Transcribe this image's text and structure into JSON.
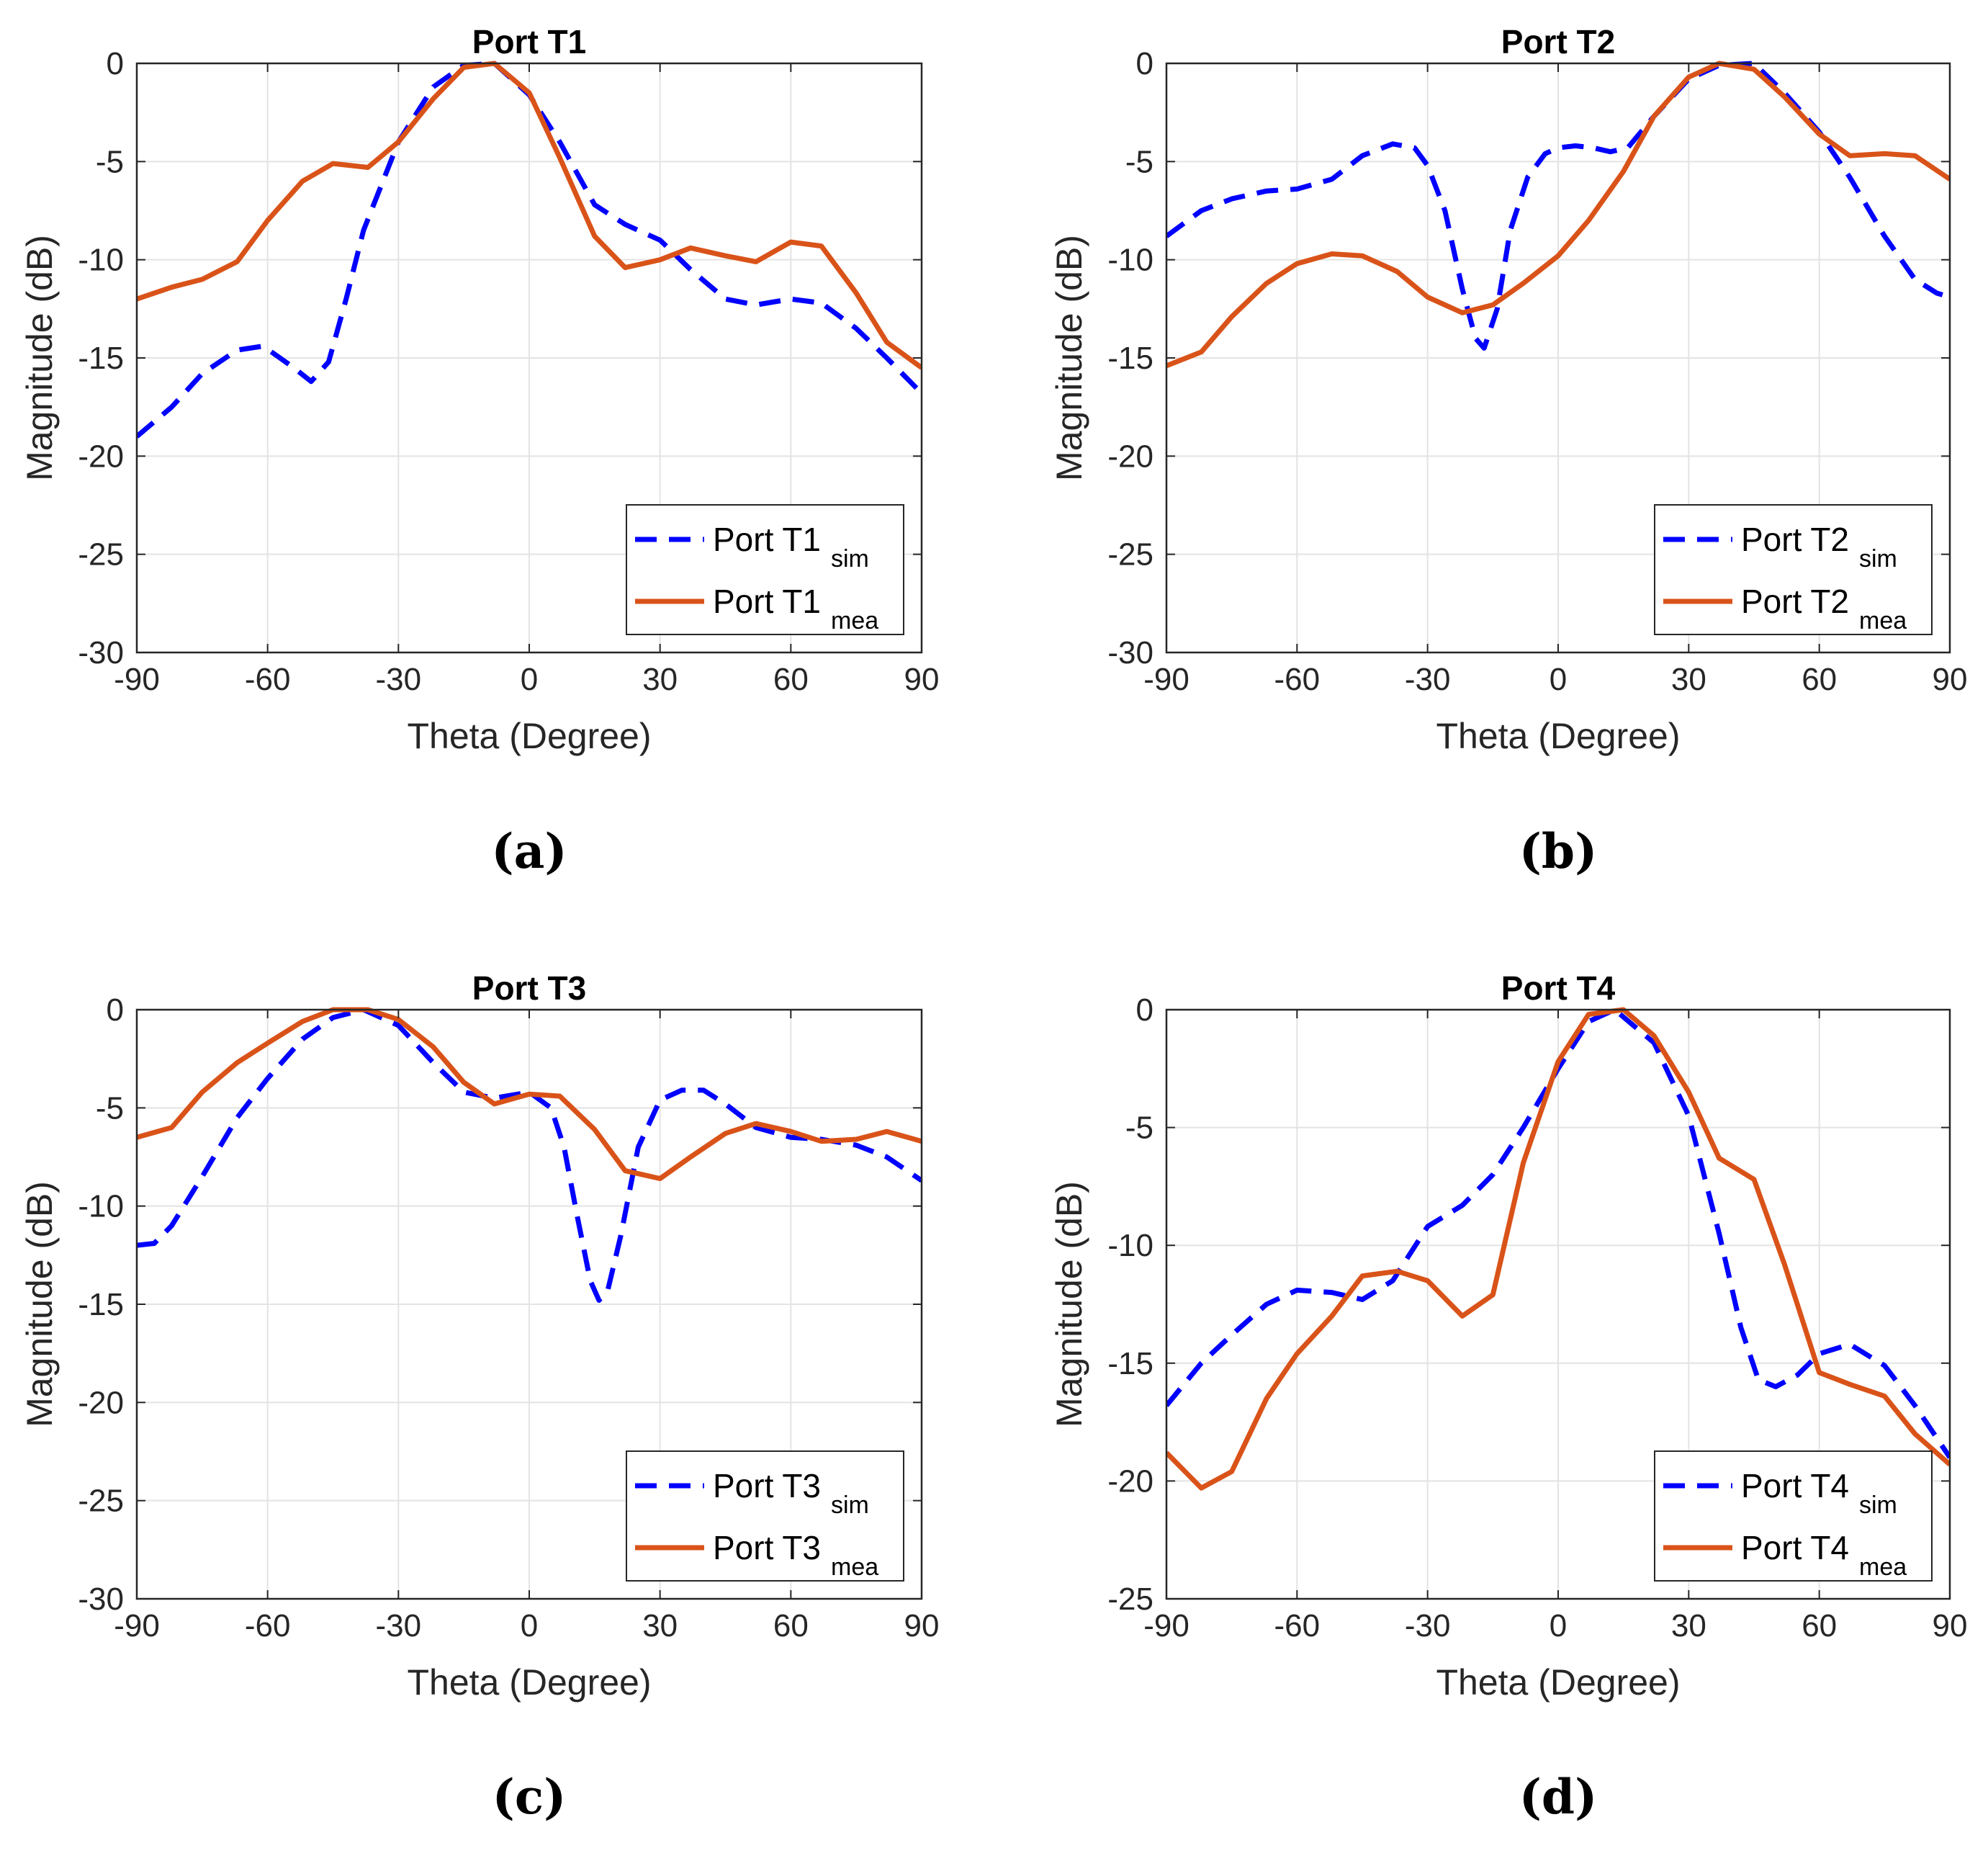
{
  "colors": {
    "sim": "#0000FF",
    "mea": "#D95319",
    "grid": "#E3E3E3",
    "axis": "#262626"
  },
  "chart_data": [
    {
      "type": "line",
      "caption": "(a)",
      "title": "Port T1",
      "xlabel": "Theta (Degree)",
      "ylabel": "Magnitude (dB)",
      "xlim": [
        -90,
        90
      ],
      "ylim": [
        -30,
        0
      ],
      "xticks": [
        -90,
        -60,
        -30,
        0,
        30,
        60,
        90
      ],
      "yticks": [
        0,
        -5,
        -10,
        -15,
        -20,
        -25,
        -30
      ],
      "grid": true,
      "legend_position": "bottom-right",
      "series": [
        {
          "name": "Port T1",
          "subscript": "sim",
          "style": "dashed",
          "x": [
            -90,
            -82,
            -75,
            -67,
            -61,
            -54,
            -50,
            -46,
            -42,
            -38,
            -30,
            -22,
            -15,
            -8,
            0,
            7,
            15,
            22,
            30,
            37,
            45,
            52,
            60,
            67,
            75,
            82,
            90
          ],
          "values": [
            -19,
            -17.5,
            -15.8,
            -14.6,
            -14.4,
            -15.5,
            -16.2,
            -15.2,
            -12,
            -8.5,
            -4,
            -1.2,
            -0.1,
            0,
            -1.6,
            -4,
            -7.2,
            -8.2,
            -9,
            -10.5,
            -12,
            -12.3,
            -12,
            -12.2,
            -13.5,
            -15,
            -16.8
          ]
        },
        {
          "name": "Port T1",
          "subscript": "mea",
          "style": "solid",
          "x": [
            -90,
            -82,
            -75,
            -67,
            -60,
            -52,
            -45,
            -37,
            -30,
            -22,
            -15,
            -8,
            0,
            7,
            15,
            22,
            30,
            37,
            45,
            52,
            60,
            67,
            75,
            82,
            90
          ],
          "values": [
            -12,
            -11.4,
            -11,
            -10.1,
            -8,
            -6,
            -5.1,
            -5.3,
            -4,
            -1.8,
            -0.2,
            0,
            -1.5,
            -4.8,
            -8.8,
            -10.4,
            -10,
            -9.4,
            -9.8,
            -10.1,
            -9.1,
            -9.3,
            -11.7,
            -14.2,
            -15.5
          ]
        }
      ]
    },
    {
      "type": "line",
      "caption": "(b)",
      "title": "Port T2",
      "xlabel": "Theta (Degree)",
      "ylabel": "Magnitude (dB)",
      "xlim": [
        -90,
        90
      ],
      "ylim": [
        -30,
        0
      ],
      "xticks": [
        -90,
        -60,
        -30,
        0,
        30,
        60,
        90
      ],
      "yticks": [
        0,
        -5,
        -10,
        -15,
        -20,
        -25,
        -30
      ],
      "grid": true,
      "legend_position": "bottom-right",
      "series": [
        {
          "name": "Port T2",
          "subscript": "sim",
          "style": "dashed",
          "x": [
            -90,
            -82,
            -75,
            -67,
            -60,
            -52,
            -45,
            -38,
            -33,
            -30,
            -26,
            -22,
            -19,
            -17,
            -14,
            -11,
            -7,
            -3,
            0,
            4,
            8,
            12,
            16,
            22,
            30,
            37,
            45,
            52,
            60,
            67,
            75,
            82,
            87,
            90
          ],
          "values": [
            -8.8,
            -7.5,
            -6.9,
            -6.5,
            -6.4,
            -5.9,
            -4.7,
            -4.1,
            -4.3,
            -5.2,
            -7.5,
            -11.5,
            -14,
            -14.5,
            -12.5,
            -8.5,
            -5.8,
            -4.6,
            -4.3,
            -4.2,
            -4.3,
            -4.5,
            -4.3,
            -2.7,
            -0.8,
            -0.1,
            0,
            -1.5,
            -3.5,
            -5.8,
            -8.8,
            -11,
            -11.7,
            -11.9
          ]
        },
        {
          "name": "Port T2",
          "subscript": "mea",
          "style": "solid",
          "x": [
            -90,
            -82,
            -75,
            -67,
            -60,
            -52,
            -45,
            -37,
            -30,
            -22,
            -15,
            -8,
            0,
            7,
            15,
            22,
            30,
            37,
            45,
            52,
            60,
            67,
            75,
            82,
            90
          ],
          "values": [
            -15.4,
            -14.7,
            -12.9,
            -11.2,
            -10.2,
            -9.7,
            -9.8,
            -10.6,
            -11.9,
            -12.7,
            -12.3,
            -11.2,
            -9.8,
            -8,
            -5.5,
            -2.7,
            -0.7,
            0,
            -0.3,
            -1.7,
            -3.6,
            -4.7,
            -4.6,
            -4.7,
            -5.9
          ]
        }
      ]
    },
    {
      "type": "line",
      "caption": "(c)",
      "title": "Port T3",
      "xlabel": "Theta (Degree)",
      "ylabel": "Magnitude (dB)",
      "xlim": [
        -90,
        90
      ],
      "ylim": [
        -30,
        0
      ],
      "xticks": [
        -90,
        -60,
        -30,
        0,
        30,
        60,
        90
      ],
      "yticks": [
        0,
        -5,
        -10,
        -15,
        -20,
        -25,
        -30
      ],
      "grid": true,
      "legend_position": "bottom-right",
      "series": [
        {
          "name": "Port T3",
          "subscript": "sim",
          "style": "dashed",
          "x": [
            -90,
            -86,
            -82,
            -75,
            -67,
            -60,
            -52,
            -45,
            -38,
            -30,
            -22,
            -15,
            -8,
            0,
            5,
            8,
            11,
            14,
            16,
            18,
            21,
            25,
            30,
            35,
            40,
            45,
            52,
            60,
            67,
            75,
            82,
            90
          ],
          "values": [
            -12,
            -11.9,
            -11,
            -8.5,
            -5.5,
            -3.5,
            -1.5,
            -0.4,
            0,
            -0.8,
            -2.7,
            -4.2,
            -4.5,
            -4.2,
            -5,
            -7,
            -10.5,
            -13.8,
            -14.8,
            -14.3,
            -11.5,
            -7,
            -4.6,
            -4.1,
            -4.1,
            -4.8,
            -6,
            -6.5,
            -6.6,
            -6.9,
            -7.5,
            -8.7
          ]
        },
        {
          "name": "Port T3",
          "subscript": "mea",
          "style": "solid",
          "x": [
            -90,
            -82,
            -75,
            -67,
            -60,
            -52,
            -45,
            -37,
            -30,
            -22,
            -15,
            -8,
            0,
            7,
            15,
            22,
            30,
            37,
            45,
            52,
            60,
            67,
            75,
            82,
            90
          ],
          "values": [
            -6.5,
            -6,
            -4.2,
            -2.7,
            -1.7,
            -0.6,
            0,
            0,
            -0.5,
            -1.9,
            -3.7,
            -4.8,
            -4.3,
            -4.4,
            -6.1,
            -8.2,
            -8.6,
            -7.5,
            -6.3,
            -5.8,
            -6.2,
            -6.7,
            -6.6,
            -6.2,
            -6.7
          ]
        }
      ]
    },
    {
      "type": "line",
      "caption": "(d)",
      "title": "Port T4",
      "xlabel": "Theta (Degree)",
      "ylabel": "Magnitude (dB)",
      "xlim": [
        -90,
        90
      ],
      "ylim": [
        -25,
        0
      ],
      "xticks": [
        -90,
        -60,
        -30,
        0,
        30,
        60,
        90
      ],
      "yticks": [
        0,
        -5,
        -10,
        -15,
        -20,
        -25
      ],
      "grid": true,
      "legend_position": "bottom-right",
      "series": [
        {
          "name": "Port T4",
          "subscript": "sim",
          "style": "dashed",
          "x": [
            -90,
            -82,
            -75,
            -67,
            -60,
            -52,
            -45,
            -38,
            -30,
            -22,
            -15,
            -8,
            0,
            7,
            13,
            22,
            30,
            37,
            42,
            46,
            50,
            55,
            60,
            67,
            75,
            82,
            90
          ],
          "values": [
            -16.8,
            -15,
            -13.8,
            -12.5,
            -11.9,
            -12,
            -12.3,
            -11.5,
            -9.2,
            -8.3,
            -7,
            -5,
            -2.5,
            -0.5,
            0,
            -1.4,
            -4.5,
            -9.5,
            -13.5,
            -15.7,
            -16,
            -15.5,
            -14.6,
            -14.2,
            -15.1,
            -16.8,
            -19
          ]
        },
        {
          "name": "Port T4",
          "subscript": "mea",
          "style": "solid",
          "x": [
            -90,
            -82,
            -75,
            -67,
            -60,
            -52,
            -45,
            -37,
            -30,
            -22,
            -15,
            -8,
            0,
            7,
            15,
            22,
            30,
            37,
            45,
            52,
            60,
            67,
            75,
            82,
            90
          ],
          "values": [
            -18.8,
            -20.3,
            -19.6,
            -16.5,
            -14.6,
            -13,
            -11.3,
            -11.1,
            -11.5,
            -13,
            -12.1,
            -6.5,
            -2.2,
            -0.2,
            0,
            -1.1,
            -3.5,
            -6.3,
            -7.2,
            -10.8,
            -15.4,
            -15.9,
            -16.4,
            -18,
            -19.3
          ]
        }
      ]
    }
  ]
}
